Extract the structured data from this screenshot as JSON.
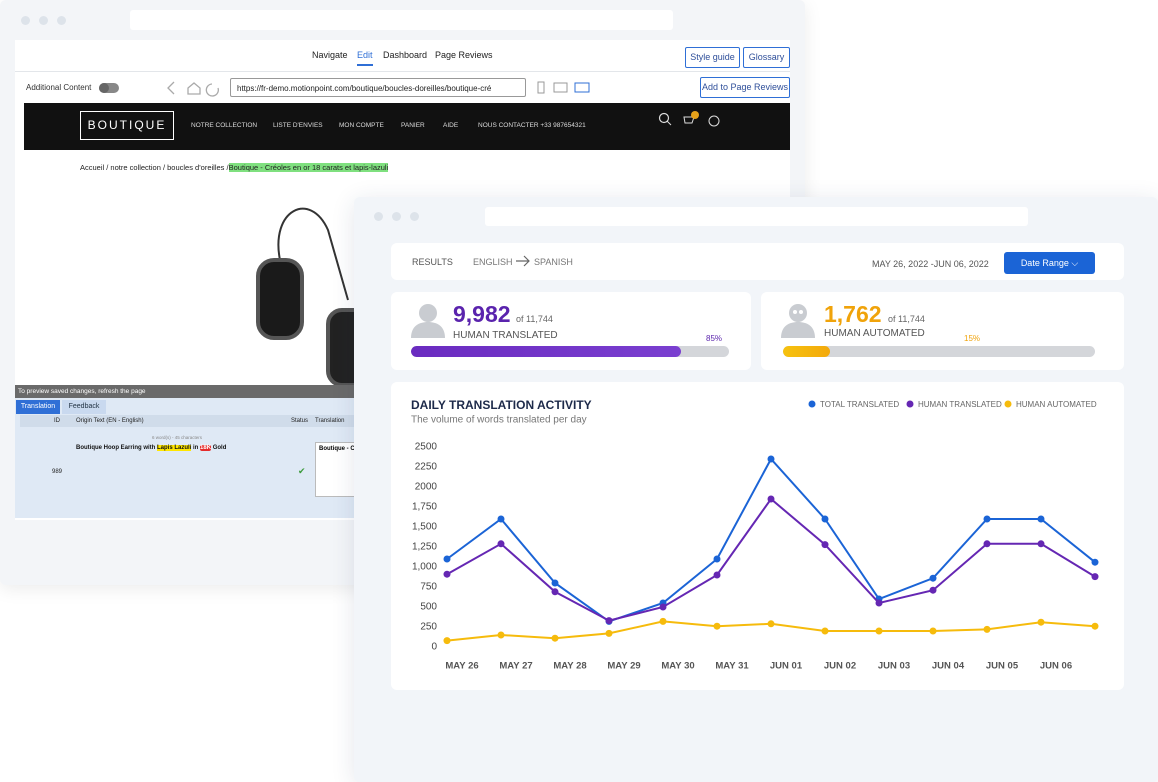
{
  "editor": {
    "tabs": [
      "Navigate",
      "Edit",
      "Dashboard",
      "Page Reviews"
    ],
    "buttons": [
      "Style guide",
      "Glossary",
      "Add to Page Reviews"
    ],
    "additional_content": "Additional Content",
    "url": "https://fr-demo.motionpoint.com/boutique/boucles-doreilles/boutique-cré",
    "site": {
      "logo": "BOUTIQUE",
      "menu": [
        "NOTRE COLLECTION",
        "LISTE D'ENVIES",
        "MON COMPTE",
        "PANIER",
        "AIDE",
        "NOUS CONTACTER +33 987654321"
      ],
      "cart_count": "0",
      "breadcrumb": "Accueil / notre collection / boucles d'oreilles /",
      "breadcrumb_current": "Boutique - Créoles en or 18 carats et lapis-lazuli"
    },
    "refresh_note": "To preview saved changes, refresh the page",
    "panel_tabs": [
      "Translation",
      "Feedback"
    ],
    "table": {
      "headers": [
        "ID",
        "Origin Text  (EN - English)",
        "Status",
        "Translation"
      ],
      "meta": "6 word(s) - 45 characters",
      "row": {
        "id": "989",
        "origin": [
          "Boutique Hoop Earring with ",
          "Lapis Lazuli",
          " in ",
          "18K",
          " Gold"
        ],
        "translation": "Boutique - Cr"
      }
    }
  },
  "dashboard": {
    "results": "RESULTS",
    "source": "ENGLISH",
    "target": "SPANISH",
    "date_range": "MAY 26, 2022 -JUN 06, 2022",
    "date_button": "Date Range",
    "cards": [
      {
        "count": "9,982",
        "total": "of 11,744",
        "label": "HUMAN TRANSLATED",
        "percent": 85,
        "percent_label": "85%"
      },
      {
        "count": "1,762",
        "total": "of 11,744",
        "label": "HUMAN AUTOMATED",
        "percent": 15,
        "percent_label": "15%"
      }
    ]
  },
  "chart_data": {
    "type": "line",
    "title": "DAILY TRANSLATION ACTIVITY",
    "subtitle": "The volume of words translated per day",
    "categories": [
      "MAY 26",
      "MAY 27",
      "MAY 28",
      "MAY 29",
      "MAY 30",
      "MAY 31",
      "JUN 01",
      "JUN 02",
      "JUN 03",
      "JUN 04",
      "JUN 05",
      "JUN 06",
      null
    ],
    "series": [
      {
        "name": "TOTAL TRANSLATED",
        "color": "#1b64d6",
        "values": [
          1100,
          1600,
          800,
          320,
          550,
          1100,
          2350,
          1600,
          600,
          860,
          1600,
          1600,
          1060
        ]
      },
      {
        "name": "HUMAN TRANSLATED",
        "color": "#6527b3",
        "values": [
          910,
          1290,
          690,
          330,
          500,
          900,
          1850,
          1280,
          550,
          710,
          1290,
          1290,
          880
        ]
      },
      {
        "name": "HUMAN AUTOMATED",
        "color": "#f6bb0c",
        "values": [
          80,
          150,
          110,
          170,
          320,
          260,
          290,
          200,
          200,
          200,
          220,
          310,
          260
        ]
      }
    ],
    "ylim": [
      0,
      2500
    ],
    "yticks": [
      0,
      250,
      500,
      750,
      {
        "value": 1000,
        "label": "1,000"
      },
      {
        "value": 1250,
        "label": "1,250"
      },
      {
        "value": 1500,
        "label": "1,500"
      },
      {
        "value": 1750,
        "label": "1,750"
      },
      {
        "value": 2000,
        "label": "2000"
      },
      {
        "value": 2250,
        "label": "2250"
      },
      {
        "value": 2500,
        "label": "2500"
      }
    ],
    "grid": false,
    "legend": "top-right"
  }
}
